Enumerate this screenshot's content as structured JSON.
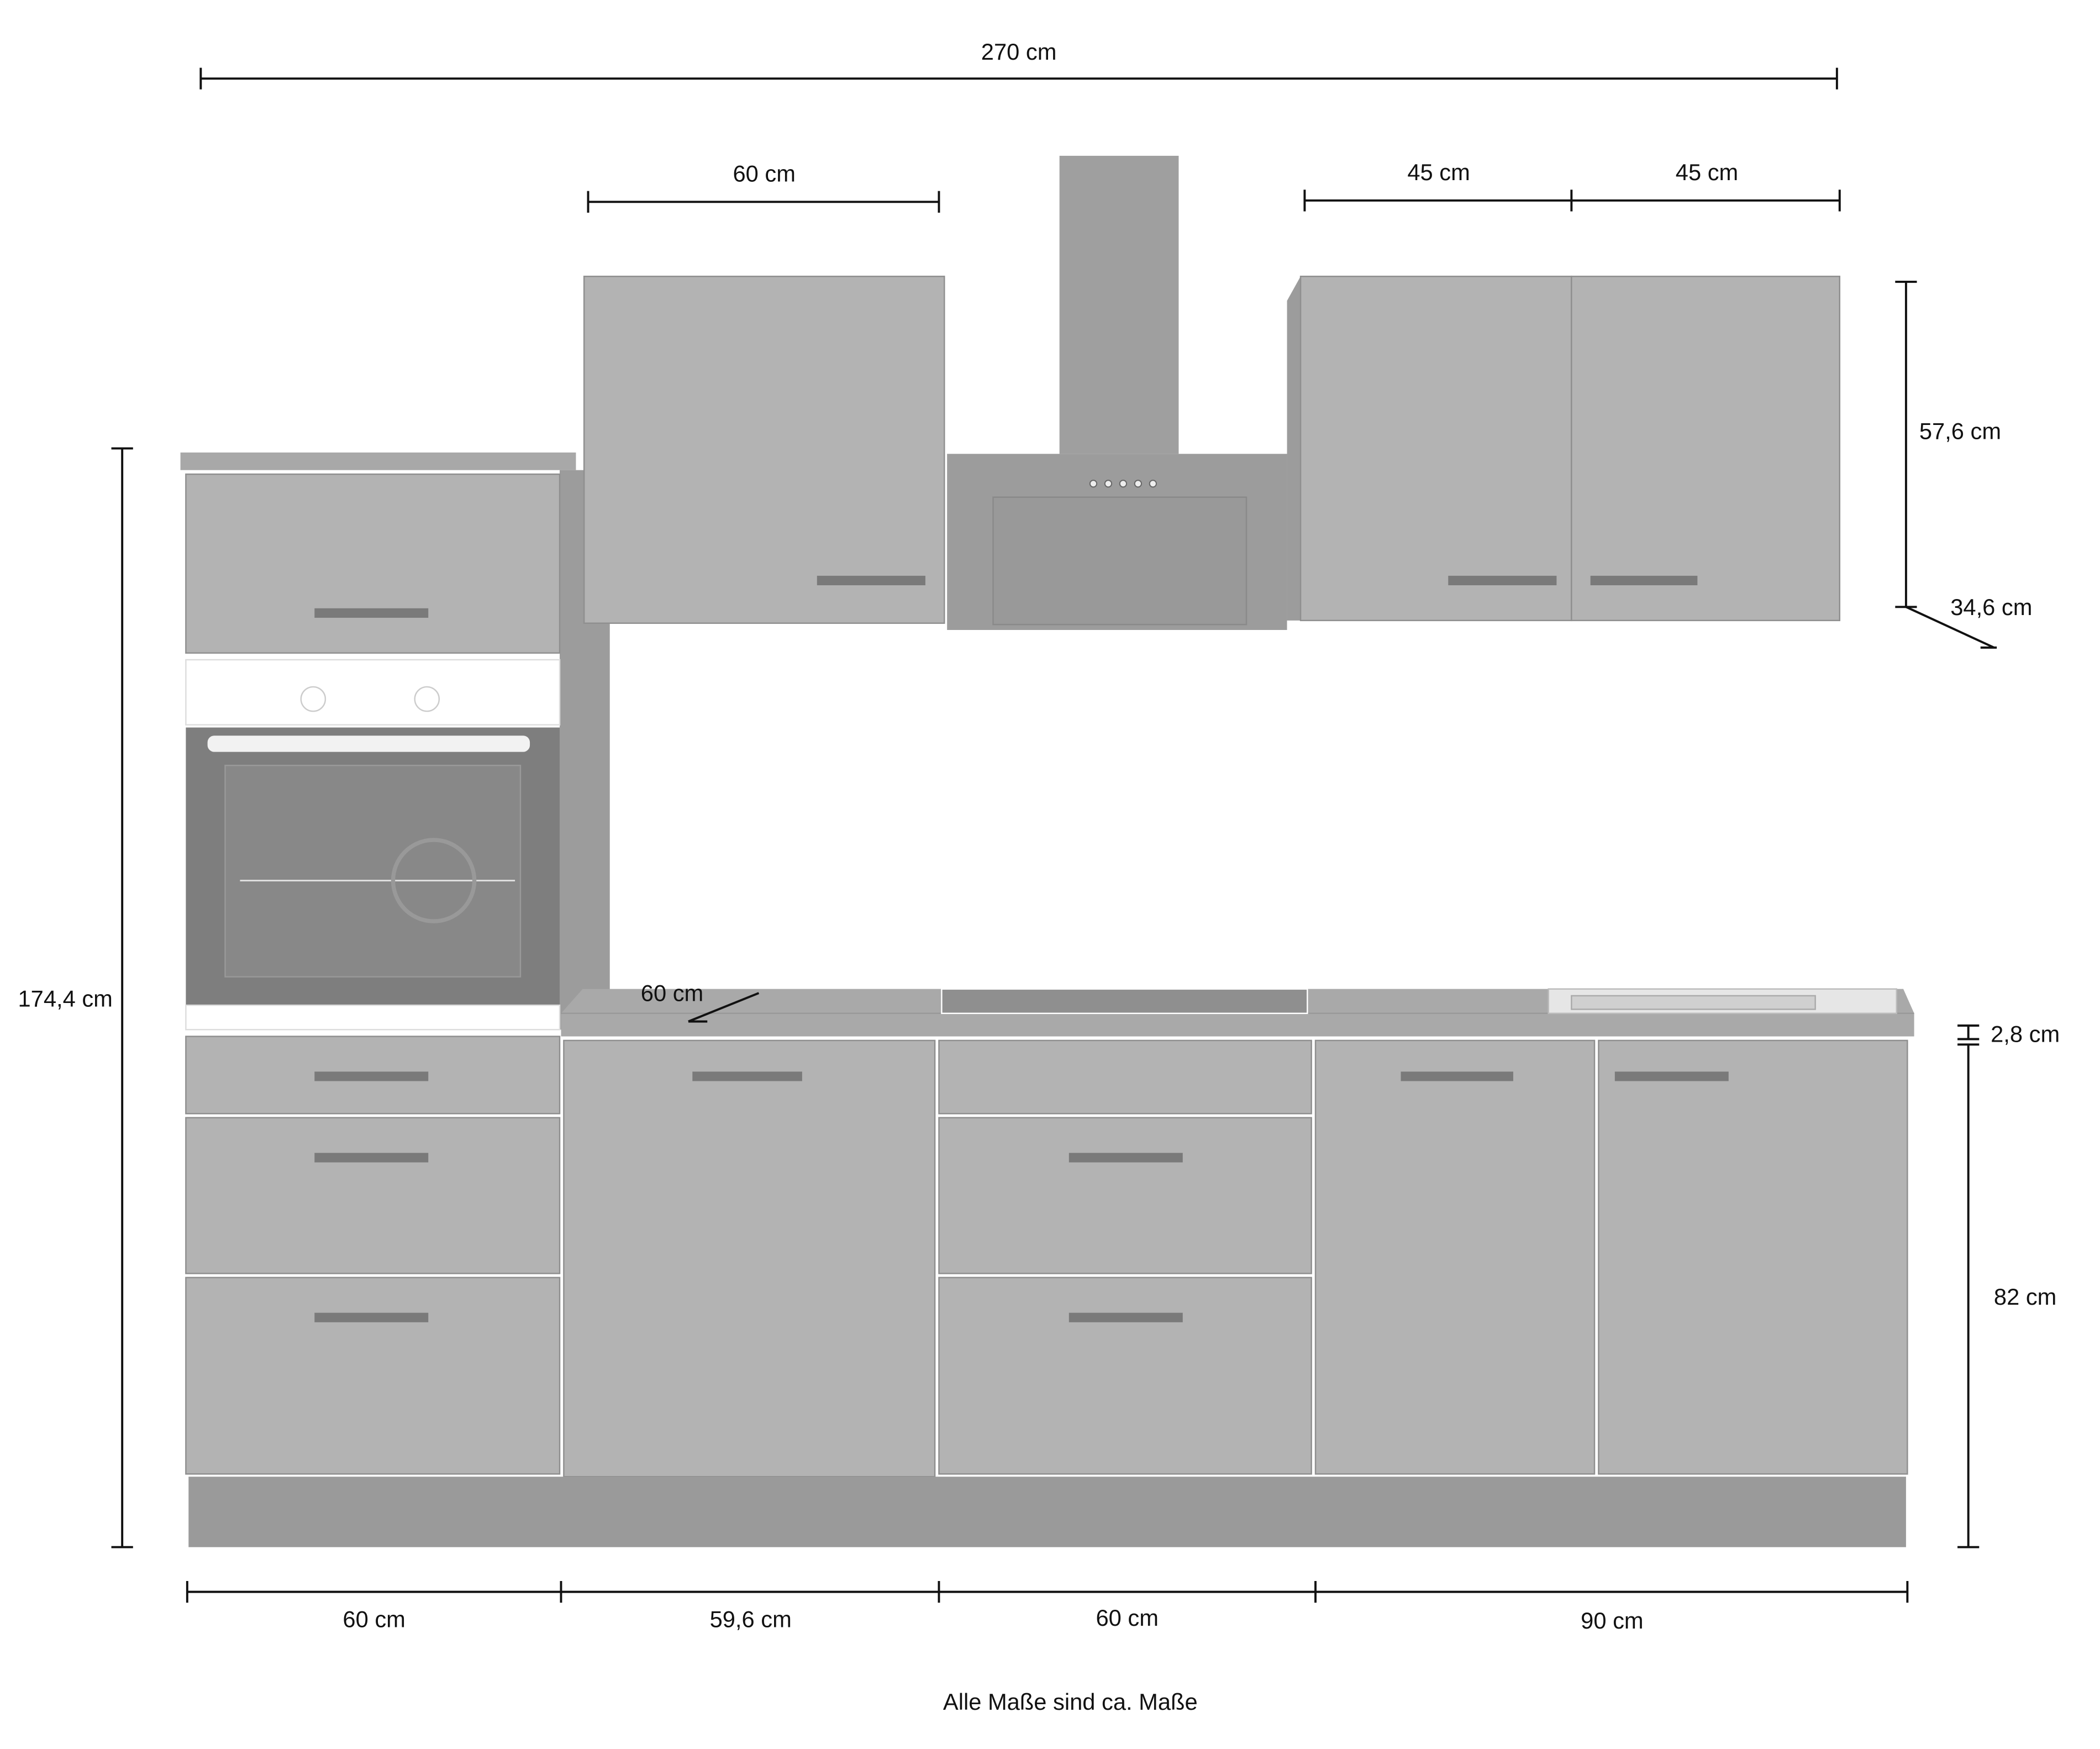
{
  "dimensions": {
    "total_width": "270 cm",
    "upper_left_width": "60 cm",
    "upper_right_width_1": "45 cm",
    "upper_right_width_2": "45 cm",
    "upper_height": "57,6 cm",
    "upper_depth": "34,6 cm",
    "total_height": "174,4 cm",
    "worktop_depth": "60 cm",
    "worktop_thickness": "2,8 cm",
    "base_height": "82 cm",
    "bottom_widths": [
      "60 cm",
      "59,6 cm",
      "60 cm",
      "90 cm"
    ]
  },
  "footer_note": "Alle Maße sind ca. Maße",
  "colors": {
    "cabinet_front": "#b3b3b3",
    "cabinet_side": "#9c9c9c",
    "handle": "#7a7a7a",
    "oven_panel": "#ffffff",
    "oven_door": "#7e7e7e",
    "dimension_line": "#111111"
  }
}
